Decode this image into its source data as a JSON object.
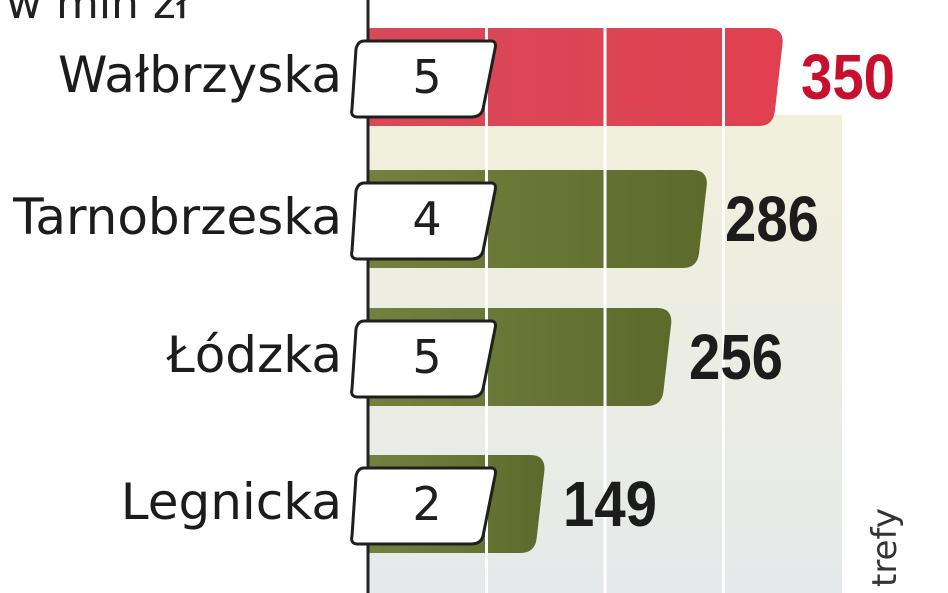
{
  "chart_data": {
    "type": "bar",
    "orientation": "horizontal",
    "unit_label": "w mln zł",
    "categories": [
      "Wałbrzyska",
      "Tarnobrzeska",
      "Łódzka",
      "Legnicka"
    ],
    "values": [
      350,
      286,
      256,
      149
    ],
    "counts": [
      "5",
      "4",
      "5",
      "2"
    ],
    "value_labels": [
      "350",
      "286",
      "256",
      "149"
    ],
    "highlight_index": 0,
    "xlim": [
      0,
      400
    ],
    "colors": {
      "highlight_bar": "#e0404f",
      "highlight_text": "#c8102e",
      "bar": "#5d6a2c",
      "text": "#1c1c1c"
    },
    "side_note": "trefy"
  }
}
